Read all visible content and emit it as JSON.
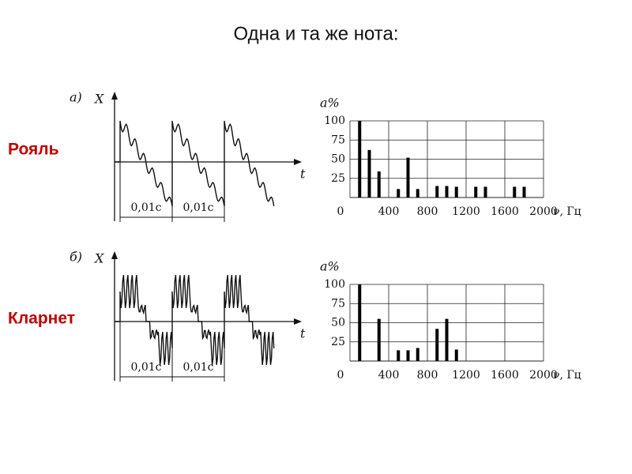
{
  "title": "Одна и та же нота:",
  "instruments": [
    "Рояль",
    "Кларнет"
  ],
  "waveforms": [
    {
      "label": "а)",
      "y_axis": "X",
      "x_axis": "t",
      "periods": [
        "0,01с",
        "0,01с"
      ]
    },
    {
      "label": "б)",
      "y_axis": "X",
      "x_axis": "t",
      "periods": [
        "0,01с",
        "0,01с"
      ]
    }
  ],
  "chart_data": [
    {
      "type": "bar",
      "ylabel": "a%",
      "xlabel": "ν, Гц",
      "color": "#000000",
      "x": [
        100,
        200,
        300,
        500,
        600,
        700,
        900,
        1000,
        1100,
        1300,
        1400,
        1700,
        1800
      ],
      "values": [
        100,
        62,
        34,
        11,
        52,
        11,
        15,
        15,
        14,
        14,
        14,
        14,
        14
      ],
      "xlim": [
        0,
        2000
      ],
      "xticks": [
        0,
        400,
        800,
        1200,
        1600,
        2000
      ],
      "ylim": [
        0,
        100
      ],
      "yticks": [
        25,
        50,
        75,
        100
      ],
      "grid": true
    },
    {
      "type": "bar",
      "ylabel": "a%",
      "xlabel": "ν, Гц",
      "color": "#000000",
      "x": [
        100,
        300,
        500,
        600,
        700,
        900,
        1000,
        1100
      ],
      "values": [
        100,
        55,
        14,
        14,
        17,
        42,
        55,
        15
      ],
      "xlim": [
        0,
        2000
      ],
      "xticks": [
        0,
        400,
        800,
        1200,
        1600,
        2000
      ],
      "ylim": [
        0,
        100
      ],
      "yticks": [
        25,
        50,
        75,
        100
      ],
      "grid": true
    }
  ]
}
